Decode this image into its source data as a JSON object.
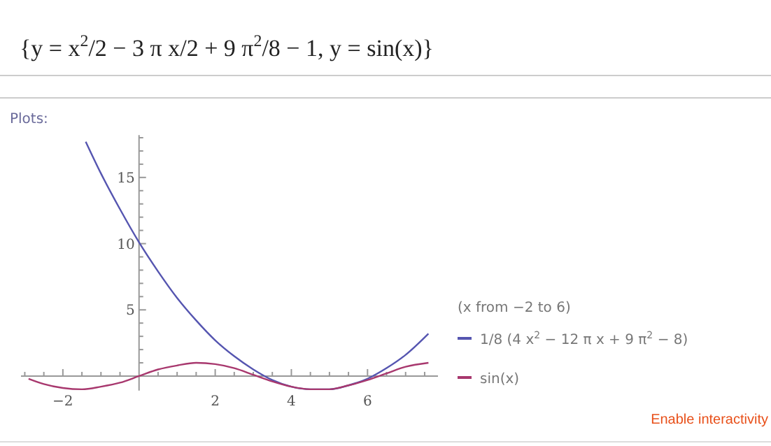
{
  "chart_data": {
    "type": "line",
    "title": "{y = x$^{2}$/2 − 3 π x/2 + 9 π$^{2}$/8 − 1, y = sin(x)}",
    "subtitle": "Plots:",
    "legend_title": "(x from −2 to 6)",
    "annotations": [
      "Enable interactivity"
    ],
    "legend": "right",
    "grid": false,
    "marker": "none",
    "line_style": "solid",
    "xlim": [
      -3.1,
      7.85
    ],
    "ylim": [
      -1.1,
      18.2
    ],
    "xticks": [
      {
        "value": -3,
        "label": null
      },
      {
        "value": -2.5,
        "label": null
      },
      {
        "value": -2,
        "label": "−2"
      },
      {
        "value": -1.5,
        "label": null
      },
      {
        "value": -1,
        "label": null
      },
      {
        "value": -0.5,
        "label": null
      },
      {
        "value": 0.5,
        "label": null
      },
      {
        "value": 1,
        "label": null
      },
      {
        "value": 1.5,
        "label": null
      },
      2,
      {
        "value": 2.5,
        "label": null
      },
      {
        "value": 3,
        "label": null
      },
      {
        "value": 3.5,
        "label": null
      },
      4,
      {
        "value": 4.5,
        "label": null
      },
      {
        "value": 5,
        "label": null
      },
      {
        "value": 5.5,
        "label": null
      },
      6,
      {
        "value": 6.5,
        "label": null
      },
      {
        "value": 7,
        "label": null
      },
      {
        "value": 7.5,
        "label": null
      }
    ],
    "yticks": [
      {
        "value": 1,
        "label": null
      },
      {
        "value": 2,
        "label": null
      },
      {
        "value": 3,
        "label": null
      },
      {
        "value": 4,
        "label": null
      },
      5,
      {
        "value": 6,
        "label": null
      },
      {
        "value": 7,
        "label": null
      },
      {
        "value": 8,
        "label": null
      },
      {
        "value": 9,
        "label": null
      },
      10,
      {
        "value": 11,
        "label": null
      },
      {
        "value": 12,
        "label": null
      },
      {
        "value": 13,
        "label": null
      },
      {
        "value": 14,
        "label": null
      },
      15,
      {
        "value": 16,
        "label": null
      },
      {
        "value": 17,
        "label": null
      },
      {
        "value": 18,
        "label": null
      }
    ],
    "series": [
      {
        "name": "1/8 (4 x$^{2}$ − 12 π x + 9 π$^{2}$ − 8)",
        "color": "#5555b0",
        "x": [
          -1.4,
          -1,
          -0.5,
          0,
          0.5,
          1,
          1.5,
          2,
          2.5,
          3,
          3.5,
          4,
          4.5,
          5,
          5.5,
          6,
          6.5,
          7,
          7.6
        ],
        "values": [
          17.7,
          15.3,
          12.6,
          10.1,
          7.9,
          5.9,
          4.2,
          2.7,
          1.5,
          0.5,
          -0.3,
          -0.8,
          -1.0,
          -1.0,
          -0.7,
          -0.2,
          0.6,
          1.6,
          3.2
        ]
      },
      {
        "name": "sin(x)",
        "color": "#a8386e",
        "x": [
          -2.9,
          -2.5,
          -2,
          -1.5,
          -1,
          -0.5,
          0,
          0.5,
          1,
          1.5,
          2,
          2.5,
          3,
          3.5,
          4,
          4.5,
          5,
          5.5,
          6,
          6.5,
          7,
          7.6
        ],
        "values": [
          -0.2,
          -0.6,
          -0.9,
          -1.0,
          -0.8,
          -0.5,
          0,
          0.5,
          0.8,
          1.0,
          0.9,
          0.6,
          0.1,
          -0.4,
          -0.8,
          -1.0,
          -1.0,
          -0.7,
          -0.3,
          0.2,
          0.7,
          1.0
        ]
      }
    ]
  }
}
